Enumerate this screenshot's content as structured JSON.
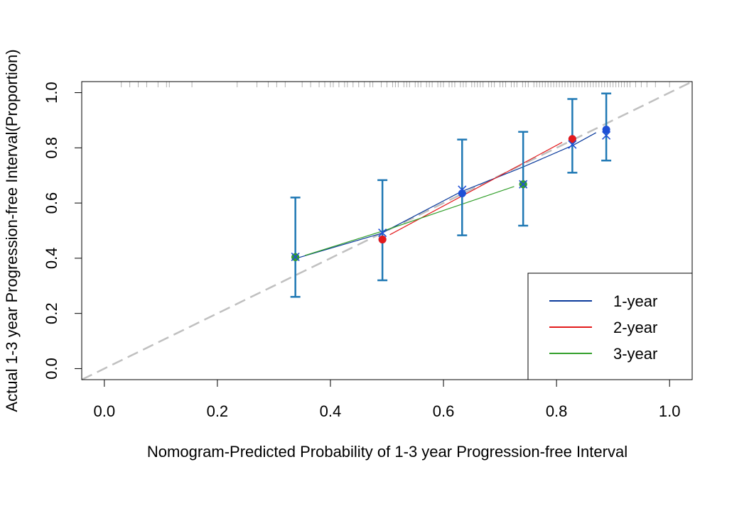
{
  "chart_data": {
    "type": "line",
    "xlabel": "Nomogram-Predicted Probability of 1-3 year Progression-free Interval",
    "ylabel": "Actual 1-3 year Progression-free Interval(Proportion)",
    "xlim": [
      -0.04,
      1.04
    ],
    "ylim": [
      -0.04,
      1.04
    ],
    "x_ticks": [
      "0.0",
      "0.2",
      "0.4",
      "0.6",
      "0.8",
      "1.0"
    ],
    "y_ticks": [
      "0.0",
      "0.2",
      "0.4",
      "0.6",
      "0.8",
      "1.0"
    ],
    "grid": false,
    "legend_position": "bottom-right",
    "reference_line": {
      "name": "ideal",
      "from": [
        -0.04,
        -0.04
      ],
      "to": [
        1.04,
        1.04
      ],
      "color": "#c0c0c0"
    },
    "series": [
      {
        "name": "1-year",
        "color": "#0a3a9c",
        "marker_color": "#1f4fd6",
        "line": {
          "x": [
            0.34,
            0.49,
            0.63,
            0.74,
            0.83,
            0.87
          ],
          "y": [
            0.4,
            0.49,
            0.64,
            0.73,
            0.81,
            0.855
          ]
        },
        "points": {
          "x": [
            0.338,
            0.492,
            0.633,
            0.741,
            0.828,
            0.888
          ],
          "y": [
            0.404,
            0.468,
            0.635,
            0.668,
            0.832,
            0.866
          ]
        },
        "cross": {
          "x": [
            0.338,
            0.492,
            0.633,
            0.741,
            0.828,
            0.888
          ],
          "y": [
            0.405,
            0.492,
            0.648,
            0.668,
            0.812,
            0.845
          ]
        }
      },
      {
        "name": "2-year",
        "color": "#e31a1c",
        "marker_color": "#e31a1c",
        "line": {
          "x": [
            0.505,
            0.81
          ],
          "y": [
            0.485,
            0.82
          ]
        },
        "points": {
          "x": [
            0.492,
            0.828
          ],
          "y": [
            0.468,
            0.832
          ]
        }
      },
      {
        "name": "3-year",
        "color": "#33a02c",
        "marker_color": "#33a02c",
        "line": {
          "x": [
            0.355,
            0.495,
            0.725
          ],
          "y": [
            0.41,
            0.5,
            0.66
          ]
        },
        "points": {
          "x": [
            0.338,
            0.741
          ],
          "y": [
            0.404,
            0.668
          ]
        }
      }
    ],
    "error_bars": {
      "color": "#1f78b4",
      "items": [
        {
          "x": 0.338,
          "low": 0.26,
          "high": 0.62
        },
        {
          "x": 0.492,
          "low": 0.32,
          "high": 0.683
        },
        {
          "x": 0.633,
          "low": 0.483,
          "high": 0.83
        },
        {
          "x": 0.741,
          "low": 0.518,
          "high": 0.858
        },
        {
          "x": 0.828,
          "low": 0.71,
          "high": 0.977
        },
        {
          "x": 0.888,
          "low": 0.754,
          "high": 0.997
        }
      ]
    },
    "rug": {
      "color": "#b0b0b0",
      "x": [
        0.03,
        0.045,
        0.06,
        0.075,
        0.095,
        0.11,
        0.115,
        0.155,
        0.235,
        0.27,
        0.29,
        0.305,
        0.32,
        0.35,
        0.365,
        0.38,
        0.39,
        0.4,
        0.405,
        0.415,
        0.425,
        0.43,
        0.44,
        0.45,
        0.46,
        0.47,
        0.475,
        0.49,
        0.5,
        0.51,
        0.515,
        0.52,
        0.53,
        0.535,
        0.54,
        0.55,
        0.555,
        0.56,
        0.57,
        0.575,
        0.58,
        0.59,
        0.595,
        0.6,
        0.61,
        0.615,
        0.62,
        0.63,
        0.635,
        0.64,
        0.65,
        0.655,
        0.66,
        0.665,
        0.67,
        0.68,
        0.685,
        0.69,
        0.7,
        0.705,
        0.71,
        0.72,
        0.725,
        0.73,
        0.74,
        0.745,
        0.75,
        0.76,
        0.765,
        0.77,
        0.775,
        0.78,
        0.785,
        0.79,
        0.795,
        0.8,
        0.805,
        0.81,
        0.815,
        0.82,
        0.825,
        0.83,
        0.835,
        0.84,
        0.845,
        0.85,
        0.855,
        0.86,
        0.865,
        0.87,
        0.875,
        0.88,
        0.885,
        0.89,
        0.895,
        0.9,
        0.905,
        0.91,
        0.915,
        0.92,
        0.925,
        0.93,
        0.94,
        0.95,
        0.96,
        0.975,
        1.0
      ]
    }
  }
}
